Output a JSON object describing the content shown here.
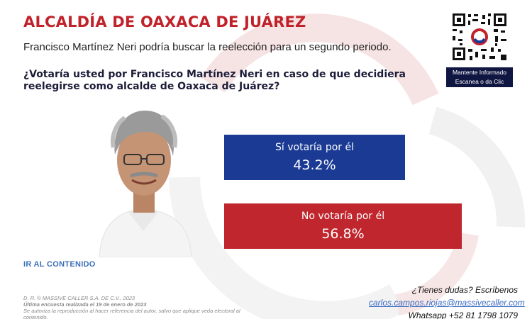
{
  "header": {
    "title": "ALCALDÍA DE OAXACA DE JUÁREZ",
    "subtitle": "Francisco Martínez Neri podría buscar la reelección para un segundo periodo.",
    "question": "¿Votaría usted por Francisco Martínez Neri en caso de que decidiera reelegirse como alcalde de Oaxaca de Juárez?"
  },
  "qr": {
    "caption_line1": "Mantente Informado",
    "caption_line2": "Escanea o da Clic"
  },
  "chart_data": {
    "type": "bar",
    "orientation": "horizontal",
    "categories": [
      "Sí votaría por él",
      "No votaría por él"
    ],
    "values": [
      43.2,
      56.8
    ],
    "value_labels": [
      "43.2%",
      "56.8%"
    ],
    "colors": [
      "#1a3a94",
      "#c0262d"
    ],
    "xlim": [
      0,
      100
    ]
  },
  "footer": {
    "link_text": "IR AL CONTENIDO",
    "copyright": "D. R. © MASSIVE CALLER S.A. DE C.V., 2023",
    "survey_date": "Última encuesta realizada el 19 de enero de 2023",
    "disclaimer": "Se autoriza la reproducción al hacer referencia del autor, salvo que aplique veda electoral al contenido.",
    "contact_question": "¿Tienes dudas? Escríbenos",
    "email": "carlos.campos.riojas@massivecaller.com",
    "whatsapp": "Whatsapp +52 81 1798 1079"
  }
}
